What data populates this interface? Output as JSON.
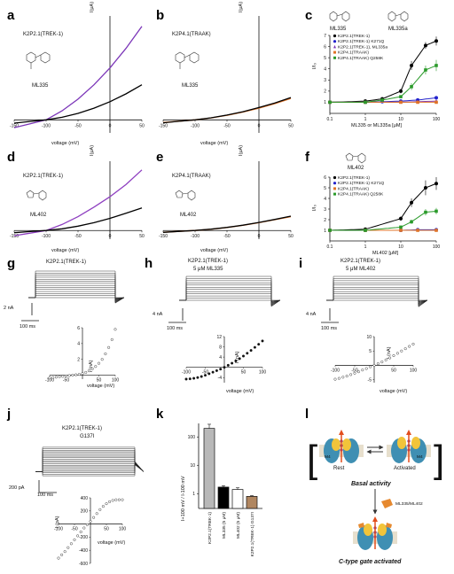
{
  "colors": {
    "trek": "#000000",
    "trek_k271q": "#2222cc",
    "trek_ml335a": "#7b35b8",
    "traak": "#e07428",
    "traak_q258k": "#2a9a2a",
    "ml402_curve": "#8e3fc0",
    "column_trek": "#b8b8b8",
    "column_g137i": "#b08660"
  },
  "panel_letters": {
    "a": "a",
    "b": "b",
    "c": "c",
    "d": "d",
    "e": "e",
    "f": "f",
    "g": "g",
    "h": "h",
    "i": "i",
    "j": "j",
    "k": "k",
    "l": "l"
  },
  "panels": {
    "a": {
      "channel": "K2P2.1(TREK-1)",
      "compound": "ML335",
      "ylabel": "I(μA)",
      "xlabel": "voltage (mV)"
    },
    "b": {
      "channel": "K2P4.1(TRAAK)",
      "compound": "ML335",
      "ylabel": "I(μA)",
      "xlabel": "voltage (mV)"
    },
    "c": {
      "ylabel": "I/I₀",
      "xlabel": "ML335 or ML335a [μM]",
      "struct1": "ML335",
      "struct2": "ML335a",
      "legend": [
        "K2P2.1(TREK-1)",
        "K2P2.1(TREK-1) K271Q",
        "K2P2.1(TREK-1), ML335a",
        "K2P4.1(TRAAK)",
        "K2P4.1(TRAAK) Q258K"
      ]
    },
    "d": {
      "channel": "K2P2.1(TREK-1)",
      "compound": "ML402",
      "ylabel": "I(μA)",
      "xlabel": "voltage (mV)"
    },
    "e": {
      "channel": "K2P4.1(TRAAK)",
      "compound": "ML402",
      "ylabel": "I(μA)",
      "xlabel": "voltage (mV)"
    },
    "f": {
      "ylabel": "I/I₀",
      "xlabel": "ML402 [μM]",
      "struct": "ML402",
      "legend": [
        "K2P2.1(TREK-1)",
        "K2P2.1(TREK-1) K271Q",
        "K2P4.1(TRAAK)",
        "K2P4.1(TRAAK) Q258K"
      ]
    },
    "g": {
      "title": "K2P2.1(TREK-1)",
      "scale_current": "2 nA",
      "scale_time": "100 ms",
      "ylabel": "I (nA)",
      "xlabel": "voltage (mV)"
    },
    "h": {
      "title": "K2P2.1(TREK-1)",
      "title2": "5 μM ML335",
      "scale_current": "4 nA",
      "scale_time": "100 ms",
      "ylabel": "I (nA)",
      "xlabel": "voltage (mV)"
    },
    "i": {
      "title": "K2P2.1(TREK-1)",
      "title2": "5 μM ML402",
      "scale_current": "4 nA",
      "scale_time": "100 ms",
      "ylabel": "I (nA)",
      "xlabel": "voltage (mV)"
    },
    "j": {
      "title": "K2P2.1(TREK-1)",
      "title2": "G137I",
      "scale_current": "200 pA",
      "scale_time": "100 ms",
      "ylabel": "I (pA)",
      "xlabel": "voltage (mV)"
    },
    "k": {
      "ylabel": "I+100 mV / I-100 mV"
    },
    "l": {
      "state_rest": "Rest",
      "state_activated": "Activated",
      "caption_basal": "Basal activity",
      "compounds": "ML335/ML402",
      "caption_activated": "C-type gate activated",
      "subunit": "M4"
    }
  },
  "chart_data": [
    {
      "panel": "a",
      "type": "line",
      "xlabel": "voltage (mV)",
      "ylabel": "I(μA)",
      "xlim": [
        -150,
        50
      ],
      "x_ticks": [
        -150,
        -100,
        -50,
        0,
        50
      ],
      "series": [
        {
          "color": "#7b35b8",
          "x": [
            -150,
            -125,
            -100,
            -75,
            -50,
            -25,
            0,
            25,
            50
          ],
          "y": [
            -0.6,
            -0.3,
            0,
            0.7,
            1.6,
            2.7,
            4.0,
            5.5,
            7.2
          ]
        },
        {
          "color": "#000000",
          "x": [
            -150,
            -125,
            -100,
            -75,
            -50,
            -25,
            0,
            25,
            50
          ],
          "y": [
            -0.25,
            -0.12,
            0,
            0.2,
            0.5,
            0.9,
            1.4,
            2.0,
            2.7
          ]
        }
      ]
    },
    {
      "panel": "b",
      "type": "line",
      "xlabel": "voltage (mV)",
      "ylabel": "I(μA)",
      "xlim": [
        -150,
        50
      ],
      "x_ticks": [
        -150,
        -100,
        -50,
        0,
        50
      ],
      "series": [
        {
          "color": "#e07428",
          "x": [
            -150,
            -125,
            -100,
            -75,
            -50,
            -25,
            0,
            25,
            50
          ],
          "y": [
            -0.2,
            -0.1,
            0,
            0.15,
            0.35,
            0.6,
            0.9,
            1.25,
            1.65
          ]
        },
        {
          "color": "#000000",
          "x": [
            -150,
            -125,
            -100,
            -75,
            -50,
            -25,
            0,
            25,
            50
          ],
          "y": [
            -0.22,
            -0.11,
            0,
            0.16,
            0.37,
            0.63,
            0.95,
            1.3,
            1.72
          ]
        }
      ]
    },
    {
      "panel": "c",
      "type": "scatter",
      "xlabel": "ML335 or ML335a [μM]",
      "ylabel": "I/I₀",
      "xscale": "log",
      "xlim": [
        0.1,
        100
      ],
      "ylim": [
        0,
        7
      ],
      "x_ticks": [
        0.1,
        1,
        10,
        100
      ],
      "x_tick_labels": [
        "0.1",
        "1",
        "10",
        "100"
      ],
      "y_ticks": [
        1,
        2,
        3,
        4,
        5,
        6,
        7
      ],
      "series": [
        {
          "name": "K2P2.1(TREK-1)",
          "color": "#000000",
          "marker": "circle",
          "x": [
            0.1,
            1,
            3,
            10,
            20,
            50,
            100
          ],
          "y": [
            1.0,
            1.1,
            1.3,
            2.0,
            4.3,
            6.1,
            6.5
          ],
          "err": [
            0,
            0,
            0.1,
            0.2,
            0.4,
            0.3,
            0.4
          ]
        },
        {
          "name": "K2P2.1(TREK-1) K271Q",
          "color": "#2222cc",
          "marker": "circle",
          "x": [
            0.1,
            1,
            3,
            10,
            30,
            100
          ],
          "y": [
            1.0,
            1.0,
            1.05,
            1.1,
            1.2,
            1.4
          ],
          "err": [
            0,
            0,
            0,
            0.05,
            0.1,
            0.1
          ]
        },
        {
          "name": "K2P2.1(TREK-1), ML335a",
          "color": "#7b35b8",
          "marker": "triangle",
          "x": [
            0.1,
            1,
            10,
            30,
            100
          ],
          "y": [
            1.0,
            1.0,
            1.0,
            1.05,
            1.1
          ],
          "err": [
            0,
            0,
            0,
            0,
            0
          ]
        },
        {
          "name": "K2P4.1(TRAAK)",
          "color": "#e07428",
          "marker": "square",
          "x": [
            0.1,
            1,
            10,
            30,
            100
          ],
          "y": [
            1.0,
            1.0,
            1.0,
            1.0,
            1.0
          ],
          "err": [
            0,
            0,
            0,
            0,
            0
          ]
        },
        {
          "name": "K2P4.1(TRAAK) Q258K",
          "color": "#2a9a2a",
          "marker": "square",
          "x": [
            0.1,
            1,
            3,
            10,
            20,
            50,
            100
          ],
          "y": [
            1.0,
            1.0,
            1.2,
            1.5,
            2.4,
            3.9,
            4.3
          ],
          "err": [
            0,
            0,
            0,
            0.1,
            0.3,
            0.4,
            0.5
          ]
        }
      ]
    },
    {
      "panel": "d",
      "type": "line",
      "xlabel": "voltage (mV)",
      "ylabel": "I(μA)",
      "xlim": [
        -150,
        50
      ],
      "x_ticks": [
        -150,
        -100,
        -50,
        0,
        50
      ],
      "series": [
        {
          "color": "#8e3fc0",
          "x": [
            -150,
            -125,
            -100,
            -75,
            -50,
            -25,
            0,
            25,
            50
          ],
          "y": [
            -0.6,
            -0.3,
            0,
            0.7,
            1.6,
            2.7,
            3.9,
            5.3,
            7.0
          ]
        },
        {
          "color": "#000000",
          "x": [
            -150,
            -125,
            -100,
            -75,
            -50,
            -25,
            0,
            25,
            50
          ],
          "y": [
            -0.25,
            -0.12,
            0,
            0.2,
            0.5,
            0.9,
            1.4,
            2.0,
            2.6
          ]
        }
      ]
    },
    {
      "panel": "e",
      "type": "line",
      "xlabel": "voltage (mV)",
      "ylabel": "I(μA)",
      "xlim": [
        -150,
        50
      ],
      "x_ticks": [
        -150,
        -100,
        -50,
        0,
        50
      ],
      "series": [
        {
          "color": "#e07428",
          "x": [
            -150,
            -125,
            -100,
            -75,
            -50,
            -25,
            0,
            25,
            50
          ],
          "y": [
            -0.2,
            -0.1,
            0,
            0.15,
            0.35,
            0.6,
            0.9,
            1.25,
            1.6
          ]
        },
        {
          "color": "#000000",
          "x": [
            -150,
            -125,
            -100,
            -75,
            -50,
            -25,
            0,
            25,
            50
          ],
          "y": [
            -0.21,
            -0.1,
            0,
            0.16,
            0.36,
            0.62,
            0.93,
            1.28,
            1.66
          ]
        }
      ]
    },
    {
      "panel": "f",
      "type": "scatter",
      "xlabel": "ML402 [μM]",
      "ylabel": "I/I₀",
      "xscale": "log",
      "xlim": [
        0.1,
        100
      ],
      "ylim": [
        0,
        6
      ],
      "x_ticks": [
        0.1,
        1,
        10,
        100
      ],
      "x_tick_labels": [
        "0.1",
        "1",
        "10",
        "100"
      ],
      "y_ticks": [
        1,
        2,
        3,
        4,
        5,
        6
      ],
      "series": [
        {
          "name": "K2P2.1(TREK-1)",
          "color": "#000000",
          "marker": "circle",
          "x": [
            0.1,
            1,
            10,
            20,
            50,
            100
          ],
          "y": [
            1.0,
            1.1,
            2.1,
            3.6,
            5.0,
            5.4
          ],
          "err": [
            0,
            0,
            0.2,
            0.4,
            0.7,
            0.6
          ]
        },
        {
          "name": "K2P2.1(TREK-1) K271Q",
          "color": "#2222cc",
          "marker": "circle",
          "x": [
            0.1,
            1,
            10,
            30,
            100
          ],
          "y": [
            1.0,
            1.0,
            1.0,
            1.05,
            1.05
          ],
          "err": [
            0,
            0,
            0,
            0,
            0
          ]
        },
        {
          "name": "K2P4.1(TRAAK)",
          "color": "#e07428",
          "marker": "square",
          "x": [
            0.1,
            1,
            10,
            30,
            100
          ],
          "y": [
            1.0,
            1.0,
            1.0,
            1.0,
            1.0
          ],
          "err": [
            0,
            0,
            0,
            0,
            0
          ]
        },
        {
          "name": "K2P4.1(TRAAK) Q258K",
          "color": "#2a9a2a",
          "marker": "square",
          "x": [
            0.1,
            1,
            10,
            20,
            50,
            100
          ],
          "y": [
            1.0,
            1.0,
            1.3,
            1.8,
            2.7,
            2.8
          ],
          "err": [
            0,
            0,
            0.1,
            0.2,
            0.3,
            0.3
          ]
        }
      ]
    },
    {
      "panel": "g",
      "type": "scatter",
      "xlabel": "voltage (mV)",
      "ylabel": "I (nA)",
      "xlim": [
        -100,
        100
      ],
      "ylim": [
        -0.5,
        6
      ],
      "x_ticks": [
        -100,
        -50,
        50,
        100
      ],
      "y_ticks": [
        2,
        4,
        6
      ],
      "x": [
        -100,
        -90,
        -80,
        -70,
        -60,
        -50,
        -40,
        -30,
        -20,
        -10,
        0,
        10,
        20,
        30,
        40,
        50,
        60,
        70,
        80,
        90,
        100
      ],
      "y": [
        -0.35,
        -0.3,
        -0.25,
        -0.2,
        -0.15,
        -0.1,
        -0.05,
        0,
        0.05,
        0.1,
        0.2,
        0.35,
        0.55,
        0.8,
        1.1,
        1.5,
        2.0,
        2.7,
        3.5,
        4.5,
        5.8
      ]
    },
    {
      "panel": "h",
      "type": "scatter",
      "xlabel": "voltage (mV)",
      "ylabel": "I (nA)",
      "xlim": [
        -100,
        100
      ],
      "ylim": [
        -6,
        12
      ],
      "x_ticks": [
        -100,
        -50,
        50,
        100
      ],
      "y_ticks": [
        -4,
        4,
        8,
        12
      ],
      "x": [
        -100,
        -90,
        -80,
        -70,
        -60,
        -50,
        -40,
        -30,
        -20,
        -10,
        0,
        10,
        20,
        30,
        40,
        50,
        60,
        70,
        80,
        90,
        100
      ],
      "y": [
        -4.6,
        -4.5,
        -4.3,
        -4.0,
        -3.6,
        -3.1,
        -2.5,
        -1.9,
        -1.3,
        -0.7,
        0,
        0.8,
        1.6,
        2.5,
        3.4,
        4.4,
        5.5,
        6.6,
        7.8,
        9.0,
        10.3
      ]
    },
    {
      "panel": "i",
      "type": "scatter",
      "xlabel": "voltage (mV)",
      "ylabel": "I (nA)",
      "xlim": [
        -100,
        100
      ],
      "ylim": [
        -6,
        10
      ],
      "x_ticks": [
        -100,
        -50,
        50,
        100
      ],
      "y_ticks": [
        -5,
        5,
        10
      ],
      "x": [
        -100,
        -90,
        -80,
        -70,
        -60,
        -50,
        -40,
        -30,
        -20,
        -10,
        0,
        10,
        20,
        30,
        40,
        50,
        60,
        70,
        80,
        90,
        100
      ],
      "y": [
        -4.8,
        -4.5,
        -4.1,
        -3.7,
        -3.2,
        -2.7,
        -2.2,
        -1.6,
        -1.1,
        -0.5,
        0,
        0.6,
        1.2,
        1.9,
        2.6,
        3.4,
        4.2,
        5.0,
        5.8,
        6.6,
        7.4
      ]
    },
    {
      "panel": "j",
      "type": "scatter",
      "xlabel": "voltage (mV)",
      "ylabel": "I (pA)",
      "xlim": [
        -100,
        100
      ],
      "ylim": [
        -600,
        400
      ],
      "x_ticks": [
        -100,
        -50,
        50,
        100
      ],
      "y_ticks": [
        -600,
        -400,
        -200,
        200,
        400
      ],
      "x": [
        -100,
        -90,
        -80,
        -70,
        -60,
        -50,
        -40,
        -30,
        -20,
        -10,
        0,
        10,
        20,
        30,
        40,
        50,
        60,
        70,
        80,
        90,
        100
      ],
      "y": [
        -520,
        -470,
        -420,
        -360,
        -300,
        -240,
        -180,
        -120,
        -60,
        -10,
        40,
        100,
        160,
        220,
        270,
        310,
        340,
        360,
        370,
        370,
        370
      ]
    },
    {
      "panel": "k",
      "type": "bar",
      "ylabel": "I+100 mV / I-100 mV",
      "yscale": "log",
      "ylim": [
        0.3,
        300
      ],
      "y_ticks": [
        1,
        10,
        100
      ],
      "categories": [
        "K2P2.1(TREK-1)",
        "ML335 (5 μM)",
        "ML402 (5 μM)",
        "K2P2.1(TREK-1) G137I"
      ],
      "values": [
        200,
        1.7,
        1.4,
        0.8
      ],
      "errors": [
        80,
        0.2,
        0.2,
        0.05
      ],
      "colors": [
        "#b8b8b8",
        "#000000",
        "#ffffff",
        "#b08660"
      ]
    }
  ]
}
